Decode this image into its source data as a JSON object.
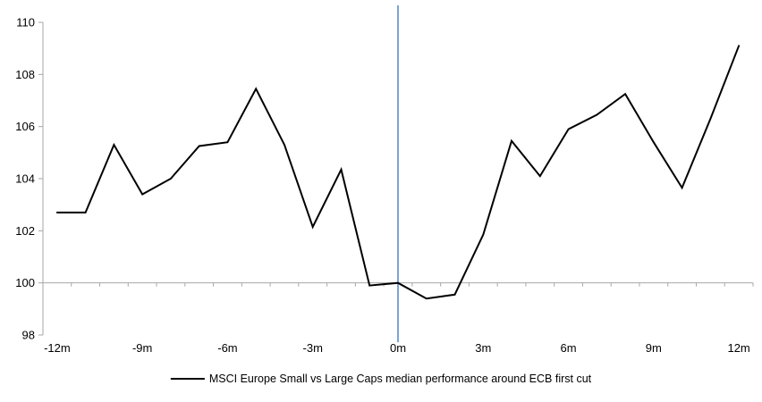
{
  "chart_data": {
    "type": "line",
    "title": "",
    "xlabel": "",
    "ylabel": "",
    "x_unit": "months relative to ECB first cut",
    "x": [
      -12,
      -11,
      -10,
      -9,
      -8,
      -7,
      -6,
      -5,
      -4,
      -3,
      -2,
      -1,
      0,
      1,
      2,
      3,
      4,
      5,
      6,
      7,
      8,
      9,
      10,
      11,
      12
    ],
    "series": [
      {
        "name": "MSCI Europe Small vs Large Caps median performance around ECB first cut",
        "color": "#000000",
        "values": [
          102.7,
          102.7,
          105.3,
          103.4,
          104.0,
          105.25,
          105.4,
          107.45,
          105.3,
          102.15,
          104.35,
          99.9,
          100.0,
          99.4,
          99.55,
          101.85,
          105.45,
          104.1,
          105.9,
          106.45,
          107.25,
          105.4,
          103.65,
          106.3,
          109.1
        ]
      }
    ],
    "ylim": [
      98,
      110
    ],
    "y_ticks": [
      110,
      108,
      106,
      104,
      102,
      100,
      98
    ],
    "x_tick_labels": [
      "-12m",
      "-9m",
      "-6m",
      "-3m",
      "0m",
      "3m",
      "6m",
      "9m",
      "12m"
    ],
    "baseline_value": 100,
    "event_line_x": 0,
    "grid": "off",
    "legend": {
      "position": "bottom-center",
      "label": "MSCI Europe Small vs Large Caps median performance around ECB first cut"
    },
    "colors": {
      "series_line": "#000000",
      "axis_line": "#a6a6a6",
      "baseline": "#a6a6a6",
      "event_line": "#7aa5d6",
      "tick_label": "#000000"
    }
  }
}
